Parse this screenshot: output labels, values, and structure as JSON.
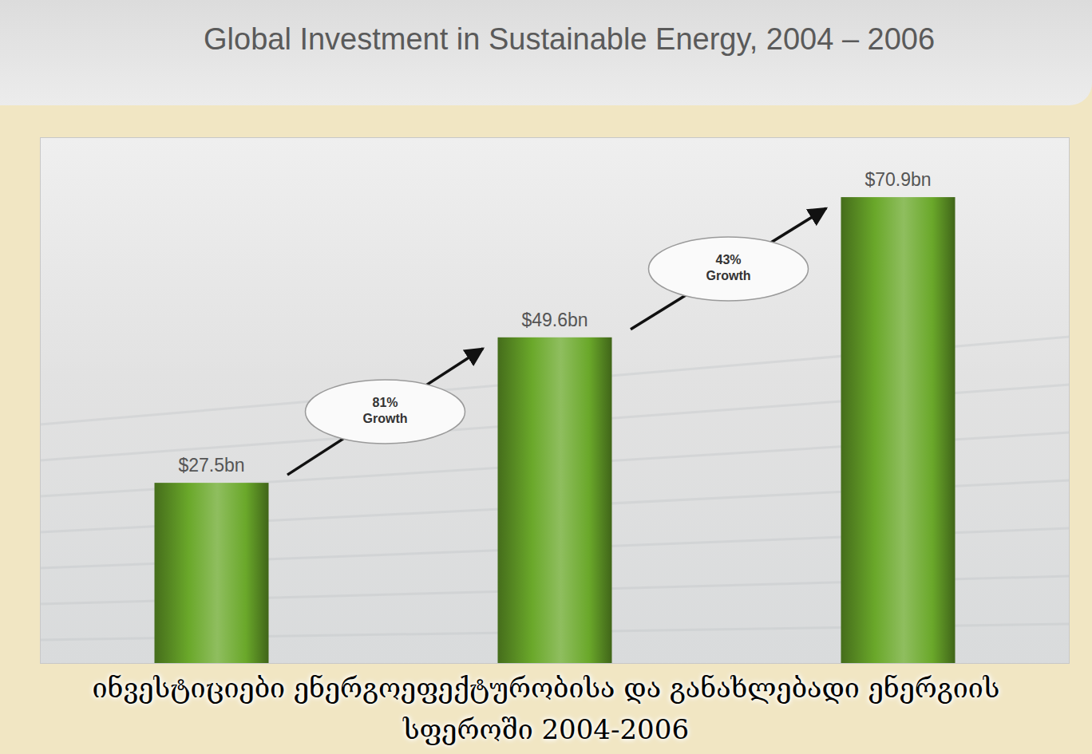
{
  "chart_data": {
    "type": "bar",
    "title": "Global Investment in Sustainable Energy, 2004 – 2006",
    "subtitle": "ინვესტიციები ენერგოეფექტურობისა და განახლებადი ენერგიის სფეროში 2004-2006",
    "categories": [
      null,
      null,
      null
    ],
    "values": [
      27.5,
      49.6,
      70.9
    ],
    "value_labels": [
      "$27.5bn",
      "$49.6bn",
      "$70.9bn"
    ],
    "data_labels": true,
    "annotations": [
      "81% Growth",
      "43% Growth"
    ],
    "color": "#6aa82a",
    "ylim": [
      0,
      80
    ],
    "tick_labels": false,
    "grid": false
  }
}
